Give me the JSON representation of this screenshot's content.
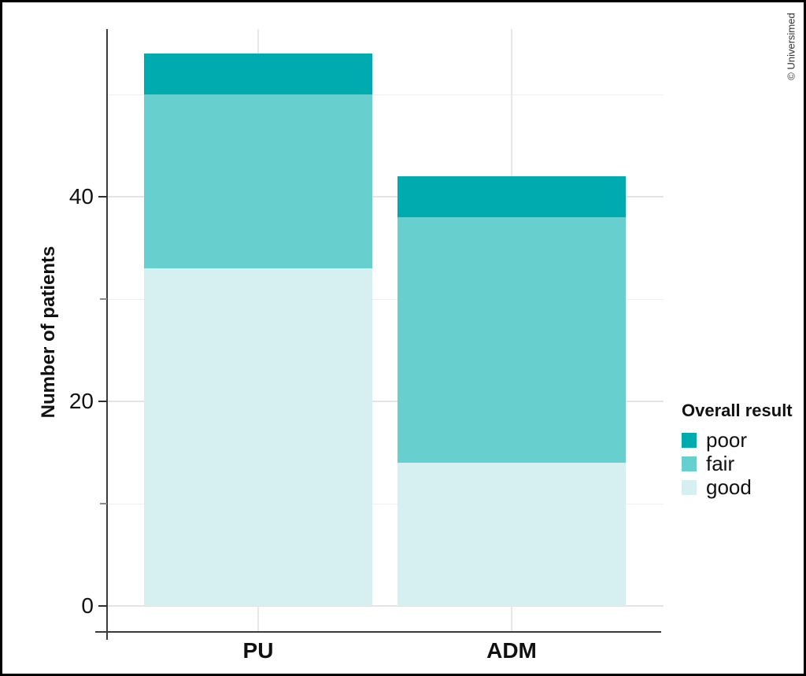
{
  "watermark": "© Universimed",
  "chart_data": {
    "type": "bar",
    "variant": "stacked",
    "title": "",
    "xlabel": "",
    "ylabel": "Number of patients",
    "categories": [
      "PU",
      "ADM"
    ],
    "series": [
      {
        "name": "good",
        "color": "#d6eff0",
        "values": [
          33,
          14
        ]
      },
      {
        "name": "fair",
        "color": "#67cfce",
        "values": [
          17,
          24
        ]
      },
      {
        "name": "poor",
        "color": "#00abaf",
        "values": [
          4,
          4
        ]
      }
    ],
    "stack_order_bottom_to_top": [
      "good",
      "fair",
      "poor"
    ],
    "totals": [
      54,
      42
    ],
    "ylim": [
      0,
      56
    ],
    "y_major_ticks": [
      0,
      20,
      40
    ],
    "y_minor_ticks": [
      10,
      30
    ],
    "y_gridlines_major": [
      0,
      20,
      40
    ],
    "y_gridlines_minor": [
      10,
      30,
      50
    ],
    "grid": "on",
    "legend": {
      "title": "Overall result",
      "position": "right",
      "entries": [
        {
          "label": "poor",
          "color": "#00abaf"
        },
        {
          "label": "fair",
          "color": "#67cfce"
        },
        {
          "label": "good",
          "color": "#d6eff0"
        }
      ]
    }
  }
}
